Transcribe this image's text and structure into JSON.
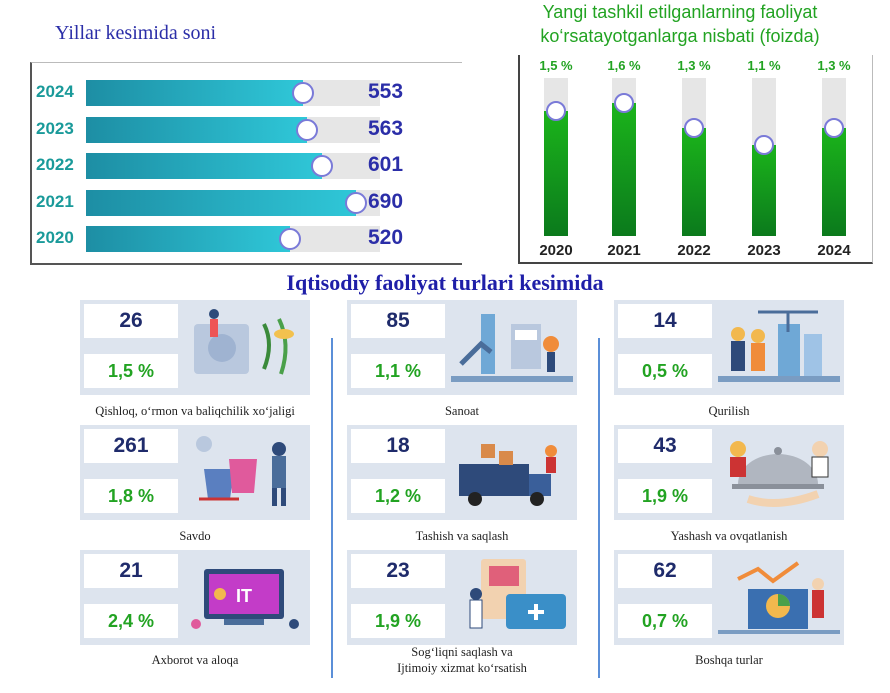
{
  "left_chart": {
    "title": "Yillar kesimida soni",
    "rows": [
      {
        "year": "2024",
        "value": "553"
      },
      {
        "year": "2023",
        "value": "563"
      },
      {
        "year": "2022",
        "value": "601"
      },
      {
        "year": "2021",
        "value": "690"
      },
      {
        "year": "2020",
        "value": "520"
      }
    ]
  },
  "right_chart": {
    "title_line1": "Yangi tashkil etilganlarning faoliyat",
    "title_line2": "ko‘rsatayotganlarga nisbati (foizda)",
    "cols": [
      {
        "year": "2020",
        "label": "1,5 %"
      },
      {
        "year": "2021",
        "label": "1,6 %"
      },
      {
        "year": "2022",
        "label": "1,3 %"
      },
      {
        "year": "2023",
        "label": "1,1 %"
      },
      {
        "year": "2024",
        "label": "1,3 %"
      }
    ]
  },
  "section_title": "Iqtisodiy faoliyat turlari kesimida",
  "cards": [
    {
      "count": "26",
      "pct": "1,5 %",
      "caption": "Qishloq, o‘rmon va baliqchilik xo‘jaligi"
    },
    {
      "count": "85",
      "pct": "1,1 %",
      "caption": "Sanoat"
    },
    {
      "count": "14",
      "pct": "0,5 %",
      "caption": "Qurilish"
    },
    {
      "count": "261",
      "pct": "1,8 %",
      "caption": "Savdo"
    },
    {
      "count": "18",
      "pct": "1,2 %",
      "caption": "Tashish va saqlash"
    },
    {
      "count": "43",
      "pct": "1,9 %",
      "caption": "Yashash va ovqatlanish"
    },
    {
      "count": "21",
      "pct": "2,4 %",
      "caption": "Axborot va aloqa"
    },
    {
      "count": "23",
      "pct": "1,9 %",
      "caption_line1": "Sog‘liqni saqlash va",
      "caption_line2": "Ijtimoiy xizmat ko‘rsatish"
    },
    {
      "count": "62",
      "pct": "0,7 %",
      "caption": "Boshqa turlar"
    }
  ],
  "chart_data": [
    {
      "type": "bar",
      "orientation": "horizontal",
      "title": "Yillar kesimida soni",
      "categories": [
        "2024",
        "2023",
        "2022",
        "2021",
        "2020"
      ],
      "values": [
        553,
        563,
        601,
        690,
        520
      ],
      "color": "#1d8ea4"
    },
    {
      "type": "bar",
      "title": "Yangi tashkil etilganlarning faoliyat ko‘rsatayotganlarga nisbati (foizda)",
      "categories": [
        "2020",
        "2021",
        "2022",
        "2023",
        "2024"
      ],
      "values": [
        1.5,
        1.6,
        1.3,
        1.1,
        1.3
      ],
      "color": "#1bb41b"
    },
    {
      "type": "table",
      "title": "Iqtisodiy faoliyat turlari kesimida",
      "categories": [
        "Qishloq, o‘rmon va baliqchilik xo‘jaligi",
        "Sanoat",
        "Qurilish",
        "Savdo",
        "Tashish va saqlash",
        "Yashash va ovqatlanish",
        "Axborot va aloqa",
        "Sog‘liqni saqlash va Ijtimoiy xizmat ko‘rsatish",
        "Boshqa turlar"
      ],
      "counts": [
        26,
        85,
        14,
        261,
        18,
        43,
        21,
        23,
        62
      ],
      "percent": [
        1.5,
        1.1,
        0.5,
        1.8,
        1.2,
        1.9,
        2.4,
        1.9,
        0.7
      ]
    }
  ]
}
